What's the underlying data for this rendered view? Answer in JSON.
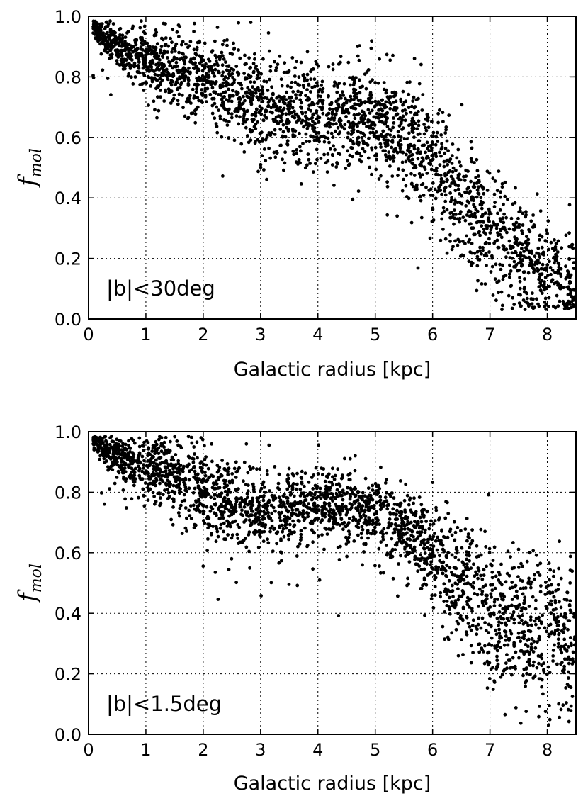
{
  "chart_data": [
    {
      "type": "scatter",
      "xlabel": "Galactic radius [kpc]",
      "ylabel": "f",
      "ylabel_sub": "mol",
      "annotation": "|b|<30deg",
      "xlim": [
        0,
        8.5
      ],
      "ylim": [
        0.0,
        1.0
      ],
      "x_ticks": [
        "0",
        "1",
        "2",
        "3",
        "4",
        "5",
        "6",
        "7",
        "8"
      ],
      "y_ticks": [
        "0.0",
        "0.2",
        "0.4",
        "0.6",
        "0.8",
        "1.0"
      ],
      "grid": true,
      "marker_color": "#000000",
      "trend": {
        "x": [
          0.1,
          0.3,
          0.6,
          1.0,
          1.5,
          2.0,
          2.5,
          3.0,
          3.5,
          4.0,
          4.5,
          5.0,
          5.5,
          6.0,
          6.5,
          7.0,
          7.5,
          8.0,
          8.5
        ],
        "y": [
          0.96,
          0.93,
          0.89,
          0.86,
          0.83,
          0.8,
          0.76,
          0.71,
          0.66,
          0.68,
          0.68,
          0.66,
          0.6,
          0.52,
          0.4,
          0.3,
          0.22,
          0.15,
          0.12
        ]
      },
      "spread": {
        "x": [
          0.1,
          1.0,
          2.0,
          3.0,
          4.0,
          5.0,
          6.0,
          7.0,
          8.0,
          8.5
        ],
        "y": [
          0.02,
          0.05,
          0.07,
          0.09,
          0.09,
          0.08,
          0.1,
          0.1,
          0.09,
          0.1
        ]
      },
      "n_points": 2600
    },
    {
      "type": "scatter",
      "xlabel": "Galactic radius [kpc]",
      "ylabel": "f",
      "ylabel_sub": "mol",
      "annotation": "|b|<1.5deg",
      "xlim": [
        0,
        8.5
      ],
      "ylim": [
        0.0,
        1.0
      ],
      "x_ticks": [
        "0",
        "1",
        "2",
        "3",
        "4",
        "5",
        "6",
        "7",
        "8"
      ],
      "y_ticks": [
        "0.0",
        "0.2",
        "0.4",
        "0.6",
        "0.8",
        "1.0"
      ],
      "grid": true,
      "marker_color": "#000000",
      "trend": {
        "x": [
          0.1,
          0.3,
          0.6,
          1.0,
          1.5,
          2.0,
          2.5,
          3.0,
          3.5,
          4.0,
          4.5,
          5.0,
          5.5,
          6.0,
          6.5,
          7.0,
          7.5,
          8.0,
          8.5
        ],
        "y": [
          0.97,
          0.95,
          0.91,
          0.88,
          0.85,
          0.81,
          0.77,
          0.74,
          0.75,
          0.76,
          0.76,
          0.74,
          0.68,
          0.6,
          0.5,
          0.42,
          0.37,
          0.33,
          0.3
        ]
      },
      "spread": {
        "x": [
          0.1,
          1.0,
          2.0,
          3.0,
          4.0,
          5.0,
          6.0,
          7.0,
          8.0,
          8.5
        ],
        "y": [
          0.02,
          0.05,
          0.07,
          0.07,
          0.06,
          0.06,
          0.09,
          0.11,
          0.11,
          0.11
        ]
      },
      "n_points": 2600
    }
  ]
}
